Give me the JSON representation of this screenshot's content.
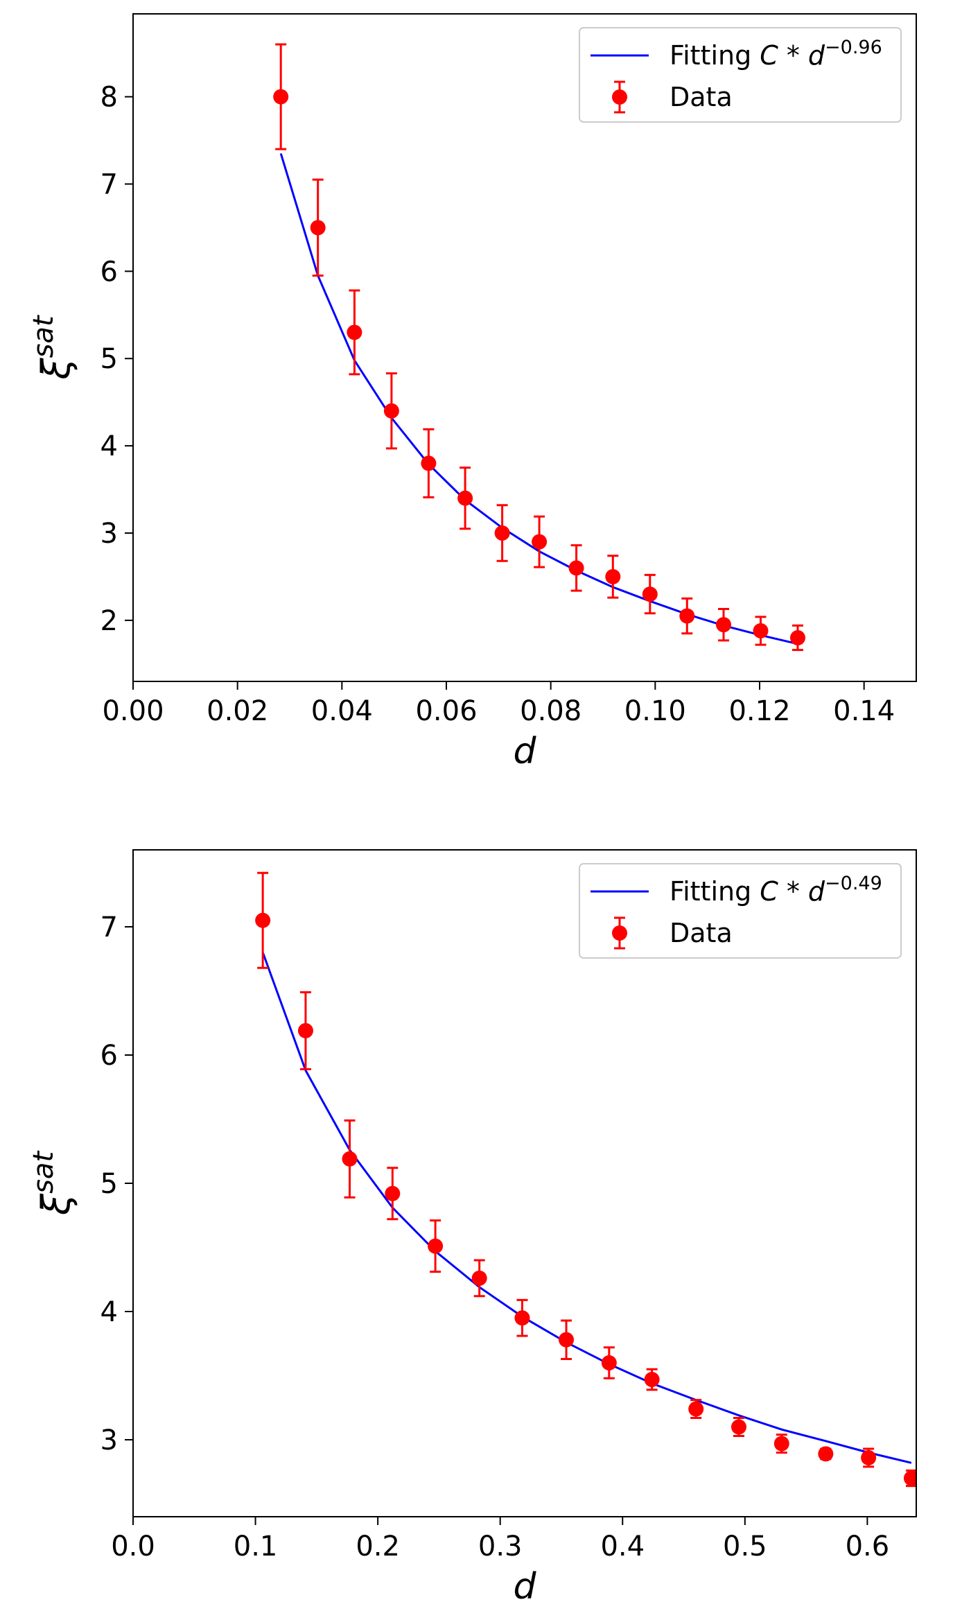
{
  "figure": {
    "colors": {
      "fit": "#0000ff",
      "data": "#ff0000",
      "axes": "#000000",
      "legend_border": "#cccccc"
    }
  },
  "chart_data": [
    {
      "type": "scatter",
      "title": "",
      "xlabel": "d",
      "ylabel": {
        "base": "ξ",
        "superscript": "sat"
      },
      "xlim": [
        0.0,
        0.15
      ],
      "ylim": [
        1.3,
        8.95
      ],
      "xticks": [
        0.0,
        0.02,
        0.04,
        0.06,
        0.08,
        0.1,
        0.12,
        0.14
      ],
      "xtick_labels": [
        "0.00",
        "0.02",
        "0.04",
        "0.06",
        "0.08",
        "0.10",
        "0.12",
        "0.14"
      ],
      "yticks": [
        2,
        3,
        4,
        5,
        6,
        7,
        8
      ],
      "ytick_labels": [
        "2",
        "3",
        "4",
        "5",
        "6",
        "7",
        "8"
      ],
      "grid": false,
      "legend_position": "top-right",
      "legend": [
        {
          "label": "Fitting",
          "formula": "C * d",
          "exponent": "−0.96",
          "kind": "line"
        },
        {
          "label": "Data",
          "kind": "errorbar"
        }
      ],
      "series": [
        {
          "name": "Data",
          "kind": "errorbar",
          "x": [
            0.0283,
            0.0354,
            0.0424,
            0.0495,
            0.0566,
            0.0636,
            0.0707,
            0.0778,
            0.0849,
            0.0919,
            0.099,
            0.1061,
            0.1131,
            0.1202,
            0.1273
          ],
          "y": [
            8.0,
            6.5,
            5.3,
            4.4,
            3.8,
            3.4,
            3.0,
            2.9,
            2.6,
            2.5,
            2.3,
            2.05,
            1.95,
            1.88,
            1.8
          ],
          "yerr": [
            0.6,
            0.55,
            0.48,
            0.43,
            0.39,
            0.35,
            0.32,
            0.29,
            0.26,
            0.24,
            0.22,
            0.2,
            0.18,
            0.16,
            0.14
          ]
        },
        {
          "name": "Fitting",
          "kind": "line",
          "x": [
            0.0283,
            0.0354,
            0.0424,
            0.0495,
            0.0566,
            0.0636,
            0.0707,
            0.0778,
            0.0849,
            0.0919,
            0.099,
            0.1061,
            0.1131,
            0.1202,
            0.1273
          ],
          "y": [
            7.35,
            5.95,
            4.98,
            4.32,
            3.79,
            3.38,
            3.06,
            2.79,
            2.57,
            2.38,
            2.22,
            2.07,
            1.94,
            1.83,
            1.73
          ]
        }
      ]
    },
    {
      "type": "scatter",
      "title": "",
      "xlabel": "d",
      "ylabel": {
        "base": "ξ",
        "superscript": "sat"
      },
      "xlim": [
        0.0,
        0.64
      ],
      "ylim": [
        2.4,
        7.6
      ],
      "xticks": [
        0.0,
        0.1,
        0.2,
        0.3,
        0.4,
        0.5,
        0.6
      ],
      "xtick_labels": [
        "0.0",
        "0.1",
        "0.2",
        "0.3",
        "0.4",
        "0.5",
        "0.6"
      ],
      "yticks": [
        3,
        4,
        5,
        6,
        7
      ],
      "ytick_labels": [
        "3",
        "4",
        "5",
        "6",
        "7"
      ],
      "grid": false,
      "legend_position": "top-right",
      "legend": [
        {
          "label": "Fitting",
          "formula": "C * d",
          "exponent": "−0.49",
          "kind": "line"
        },
        {
          "label": "Data",
          "kind": "errorbar"
        }
      ],
      "series": [
        {
          "name": "Data",
          "kind": "errorbar",
          "x": [
            0.106,
            0.141,
            0.177,
            0.212,
            0.247,
            0.283,
            0.318,
            0.354,
            0.389,
            0.424,
            0.46,
            0.495,
            0.53,
            0.566,
            0.601,
            0.636
          ],
          "y": [
            7.05,
            6.19,
            5.19,
            4.92,
            4.51,
            4.26,
            3.95,
            3.78,
            3.6,
            3.47,
            3.24,
            3.1,
            2.97,
            2.89,
            2.86,
            2.7
          ],
          "yerr": [
            0.37,
            0.3,
            0.3,
            0.2,
            0.2,
            0.14,
            0.14,
            0.15,
            0.12,
            0.08,
            0.07,
            0.07,
            0.07,
            0.04,
            0.07,
            0.06
          ]
        },
        {
          "name": "Fitting",
          "kind": "line",
          "x": [
            0.106,
            0.141,
            0.177,
            0.212,
            0.247,
            0.283,
            0.318,
            0.354,
            0.389,
            0.424,
            0.46,
            0.495,
            0.53,
            0.566,
            0.601,
            0.636
          ],
          "y": [
            6.8,
            5.88,
            5.26,
            4.81,
            4.47,
            4.19,
            3.96,
            3.76,
            3.59,
            3.44,
            3.31,
            3.19,
            3.08,
            2.99,
            2.9,
            2.82
          ]
        }
      ]
    }
  ]
}
